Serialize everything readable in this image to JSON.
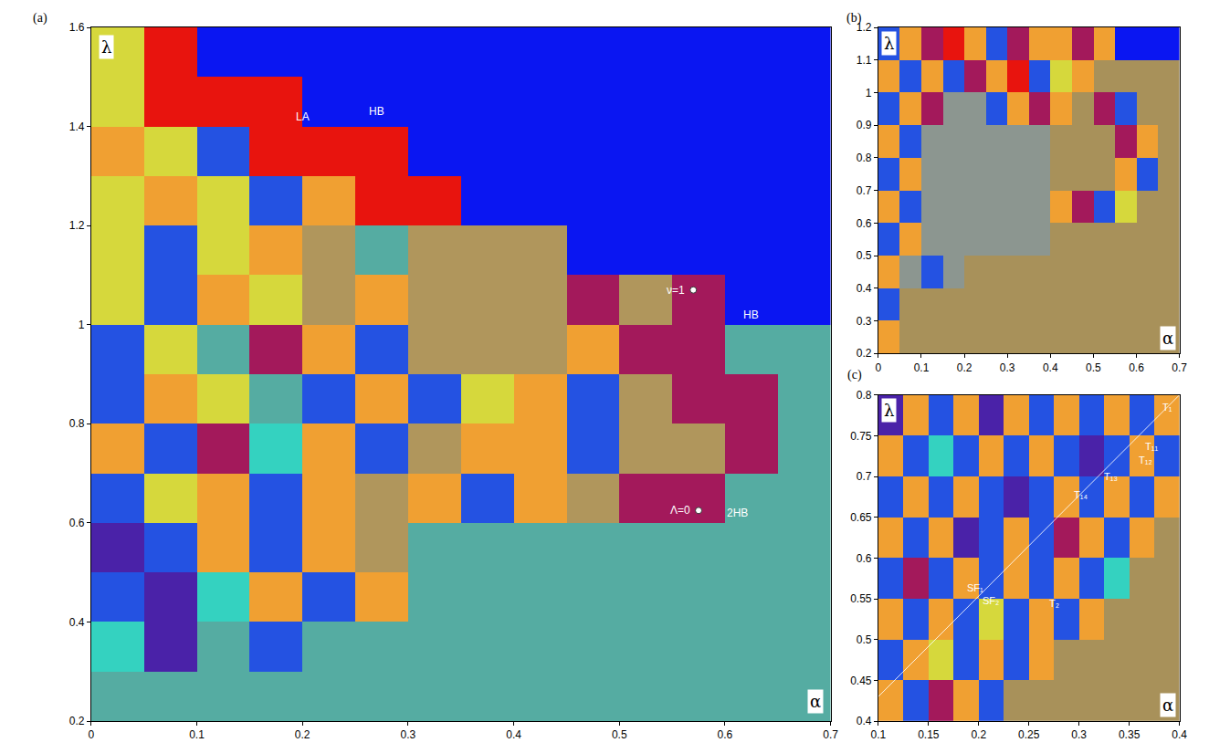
{
  "chart_data": [
    {
      "type": "heatmap",
      "label": "(a)",
      "x_label": "α",
      "y_label": "λ",
      "xlim": [
        0,
        0.7
      ],
      "ylim": [
        0.2,
        1.6
      ],
      "xticks": [
        0,
        0.1,
        0.2,
        0.3,
        0.4,
        0.5,
        0.6,
        0.7
      ],
      "yticks": [
        0.2,
        0.4,
        0.6,
        0.8,
        1,
        1.2,
        1.4,
        1.6
      ],
      "grid": true,
      "colors": [
        "#55aca2",
        "#0a16f2",
        "#e8140e",
        "#b0965c",
        "#a3195b",
        "#d6d83c",
        "#f0a032",
        "#34d2c0",
        "#2452e2",
        "#4a22a8",
        "#a2d262",
        "#a8915a",
        "#8c9690"
      ],
      "x": [
        0.025,
        0.075,
        0.125,
        0.175,
        0.225,
        0.275,
        0.325,
        0.375,
        0.425,
        0.475,
        0.525,
        0.575,
        0.625,
        0.675
      ],
      "y": [
        0.25,
        0.35,
        0.45,
        0.55,
        0.65,
        0.75,
        0.85,
        0.95,
        1.05,
        1.15,
        1.25,
        1.35,
        1.45,
        1.55
      ],
      "z": [
        [
          0,
          0,
          0,
          0,
          0,
          0,
          0,
          0,
          0,
          0,
          0,
          0,
          0,
          0
        ],
        [
          7,
          9,
          0,
          8,
          0,
          0,
          0,
          0,
          0,
          0,
          0,
          0,
          0,
          0
        ],
        [
          8,
          9,
          7,
          6,
          8,
          6,
          0,
          0,
          0,
          0,
          0,
          0,
          0,
          0
        ],
        [
          9,
          8,
          6,
          8,
          6,
          3,
          0,
          0,
          0,
          0,
          0,
          0,
          0,
          0
        ],
        [
          8,
          5,
          6,
          8,
          6,
          3,
          6,
          8,
          6,
          3,
          4,
          4,
          0,
          0
        ],
        [
          6,
          8,
          4,
          7,
          6,
          8,
          3,
          6,
          6,
          8,
          3,
          3,
          4,
          0
        ],
        [
          8,
          6,
          5,
          0,
          8,
          6,
          8,
          5,
          6,
          8,
          3,
          4,
          4,
          0
        ],
        [
          8,
          5,
          0,
          4,
          6,
          8,
          3,
          3,
          3,
          6,
          4,
          4,
          0,
          0
        ],
        [
          5,
          8,
          6,
          5,
          3,
          6,
          3,
          3,
          3,
          4,
          3,
          4,
          1,
          1
        ],
        [
          5,
          8,
          5,
          6,
          3,
          0,
          3,
          3,
          3,
          1,
          1,
          1,
          1,
          1
        ],
        [
          5,
          6,
          5,
          8,
          6,
          2,
          2,
          1,
          1,
          1,
          1,
          1,
          1,
          1
        ],
        [
          6,
          5,
          8,
          2,
          2,
          2,
          1,
          1,
          1,
          1,
          1,
          1,
          1,
          1
        ],
        [
          5,
          2,
          2,
          2,
          1,
          1,
          1,
          1,
          1,
          1,
          1,
          1,
          1,
          1
        ],
        [
          5,
          2,
          1,
          1,
          1,
          1,
          1,
          1,
          1,
          1,
          1,
          1,
          1,
          1
        ]
      ],
      "annotations": [
        {
          "text": "LA",
          "x": 0.2,
          "y": 1.42
        },
        {
          "text": "HB",
          "x": 0.27,
          "y": 1.43
        },
        {
          "text": "HB",
          "x": 0.625,
          "y": 1.02
        },
        {
          "text": "2HB",
          "x": 0.612,
          "y": 0.62
        }
      ],
      "points": [
        {
          "x": 0.57,
          "y": 1.07,
          "label": "ν=1"
        },
        {
          "x": 0.575,
          "y": 0.625,
          "label": "Λ=0"
        }
      ]
    },
    {
      "type": "heatmap",
      "label": "(b)",
      "x_label": "α",
      "y_label": "λ",
      "xlim": [
        0,
        0.7
      ],
      "ylim": [
        0.2,
        1.2
      ],
      "xticks": [
        0,
        0.1,
        0.2,
        0.3,
        0.4,
        0.5,
        0.6,
        0.7
      ],
      "yticks": [
        0.2,
        0.3,
        0.4,
        0.5,
        0.6,
        0.7,
        0.8,
        0.9,
        1,
        1.1,
        1.2
      ],
      "grid": false,
      "colors": [
        "#55aca2",
        "#0a16f2",
        "#e8140e",
        "#b0965c",
        "#a3195b",
        "#d6d83c",
        "#f0a032",
        "#34d2c0",
        "#2452e2",
        "#4a22a8",
        "#a2d262",
        "#a8915a",
        "#8c9690"
      ],
      "x": [
        0.025,
        0.075,
        0.125,
        0.175,
        0.225,
        0.275,
        0.325,
        0.375,
        0.425,
        0.475,
        0.525,
        0.575,
        0.625,
        0.675
      ],
      "y": [
        0.25,
        0.35,
        0.45,
        0.55,
        0.65,
        0.75,
        0.85,
        0.95,
        1.05,
        1.15
      ],
      "z": [
        [
          6,
          11,
          11,
          11,
          11,
          11,
          11,
          11,
          11,
          11,
          11,
          11,
          11,
          11
        ],
        [
          8,
          11,
          11,
          11,
          11,
          11,
          11,
          11,
          11,
          11,
          11,
          11,
          11,
          11
        ],
        [
          6,
          12,
          8,
          12,
          11,
          11,
          11,
          11,
          11,
          11,
          11,
          11,
          11,
          11
        ],
        [
          8,
          6,
          12,
          12,
          12,
          12,
          12,
          12,
          11,
          11,
          11,
          11,
          11,
          11
        ],
        [
          6,
          8,
          12,
          12,
          12,
          12,
          12,
          12,
          6,
          4,
          8,
          5,
          11,
          11
        ],
        [
          8,
          6,
          12,
          12,
          12,
          12,
          12,
          12,
          11,
          11,
          11,
          6,
          8,
          11
        ],
        [
          6,
          8,
          12,
          12,
          12,
          12,
          12,
          12,
          11,
          11,
          11,
          4,
          6,
          11
        ],
        [
          8,
          6,
          4,
          12,
          12,
          8,
          6,
          4,
          6,
          11,
          4,
          8,
          11,
          11
        ],
        [
          6,
          8,
          6,
          8,
          4,
          6,
          2,
          8,
          5,
          6,
          11,
          11,
          11,
          11
        ],
        [
          8,
          6,
          4,
          2,
          6,
          8,
          4,
          6,
          6,
          4,
          6,
          1,
          1,
          1
        ]
      ]
    },
    {
      "type": "heatmap",
      "label": "(c)",
      "x_label": "α",
      "y_label": "λ",
      "xlim": [
        0.1,
        0.4
      ],
      "ylim": [
        0.4,
        0.8
      ],
      "xticks": [
        0.1,
        0.15,
        0.2,
        0.25,
        0.3,
        0.35,
        0.4
      ],
      "yticks": [
        0.4,
        0.45,
        0.5,
        0.55,
        0.6,
        0.65,
        0.7,
        0.75,
        0.8
      ],
      "grid": false,
      "colors": [
        "#55aca2",
        "#0a16f2",
        "#e8140e",
        "#b0965c",
        "#a3195b",
        "#d6d83c",
        "#f0a032",
        "#34d2c0",
        "#2452e2",
        "#4a22a8",
        "#a2d262",
        "#a8915a",
        "#8c9690"
      ],
      "x": [
        0.1125,
        0.1375,
        0.1625,
        0.1875,
        0.2125,
        0.2375,
        0.2625,
        0.2875,
        0.3125,
        0.3375,
        0.3625,
        0.3875
      ],
      "y": [
        0.425,
        0.475,
        0.525,
        0.575,
        0.625,
        0.675,
        0.725,
        0.775
      ],
      "z": [
        [
          6,
          8,
          4,
          6,
          8,
          11,
          11,
          11,
          11,
          11,
          11,
          11
        ],
        [
          8,
          6,
          5,
          8,
          6,
          8,
          6,
          11,
          11,
          11,
          11,
          11
        ],
        [
          6,
          8,
          6,
          8,
          5,
          8,
          6,
          8,
          6,
          11,
          11,
          11
        ],
        [
          8,
          4,
          8,
          6,
          8,
          6,
          8,
          6,
          8,
          7,
          11,
          11
        ],
        [
          6,
          8,
          6,
          9,
          8,
          6,
          8,
          4,
          6,
          8,
          6,
          11
        ],
        [
          8,
          6,
          8,
          6,
          8,
          9,
          8,
          6,
          8,
          6,
          8,
          6
        ],
        [
          6,
          8,
          7,
          8,
          6,
          8,
          6,
          8,
          9,
          8,
          6,
          8
        ],
        [
          9,
          6,
          8,
          6,
          9,
          6,
          8,
          6,
          8,
          6,
          8,
          6
        ]
      ],
      "segment": {
        "x": [
          0.1,
          0.4
        ],
        "y": [
          0.43,
          0.8
        ]
      },
      "annotations": [
        {
          "text": "T₁",
          "x": 0.388,
          "y": 0.785
        },
        {
          "text": "T₁₁",
          "x": 0.372,
          "y": 0.737
        },
        {
          "text": "T₁₂",
          "x": 0.366,
          "y": 0.72
        },
        {
          "text": "T₁₃",
          "x": 0.332,
          "y": 0.7
        },
        {
          "text": "T₁₄",
          "x": 0.302,
          "y": 0.678
        },
        {
          "text": "SF₁",
          "x": 0.197,
          "y": 0.563
        },
        {
          "text": "SF₂",
          "x": 0.212,
          "y": 0.548
        },
        {
          "text": "T₂",
          "x": 0.275,
          "y": 0.545
        }
      ]
    }
  ]
}
